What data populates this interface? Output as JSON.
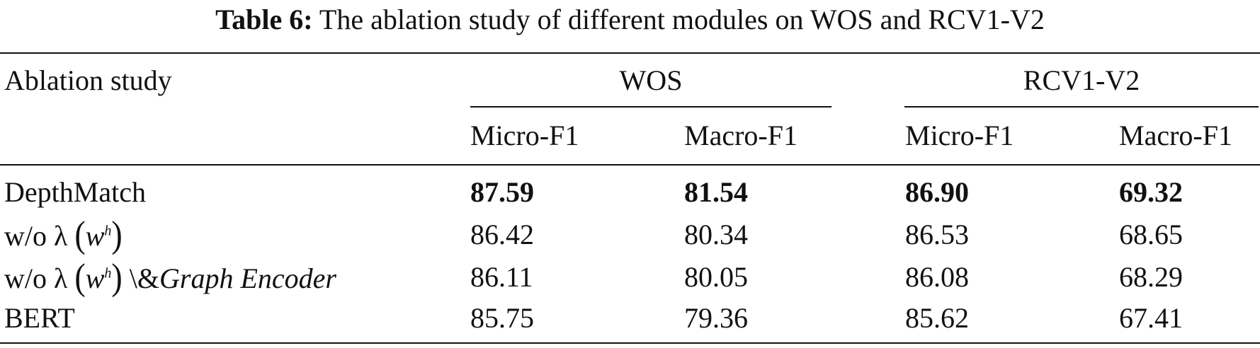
{
  "caption": {
    "label": "Table 6:",
    "text": "The ablation study of different modules on WOS and RCV1-V2"
  },
  "table": {
    "stub_header": "Ablation study",
    "groups": [
      {
        "name": "WOS",
        "columns": [
          "Micro-F1",
          "Macro-F1"
        ]
      },
      {
        "name": "RCV1-V2",
        "columns": [
          "Micro-F1",
          "Macro-F1"
        ]
      }
    ],
    "rows": [
      {
        "label_plain": "DepthMatch",
        "values": [
          "87.59",
          "81.54",
          "86.90",
          "69.32"
        ],
        "bold": true
      },
      {
        "label_prefix": "w/o λ",
        "label_math_base": "w",
        "label_math_sup": "h",
        "values": [
          "86.42",
          "80.34",
          "86.53",
          "68.65"
        ],
        "bold": false
      },
      {
        "label_prefix": "w/o λ",
        "label_math_base": "w",
        "label_math_sup": "h",
        "label_suffix_plain": "\\&",
        "label_suffix_italic": "Graph Encoder",
        "values": [
          "86.11",
          "80.05",
          "86.08",
          "68.29"
        ],
        "bold": false
      },
      {
        "label_plain": "BERT",
        "values": [
          "85.75",
          "79.36",
          "85.62",
          "67.41"
        ],
        "bold": false
      }
    ]
  }
}
